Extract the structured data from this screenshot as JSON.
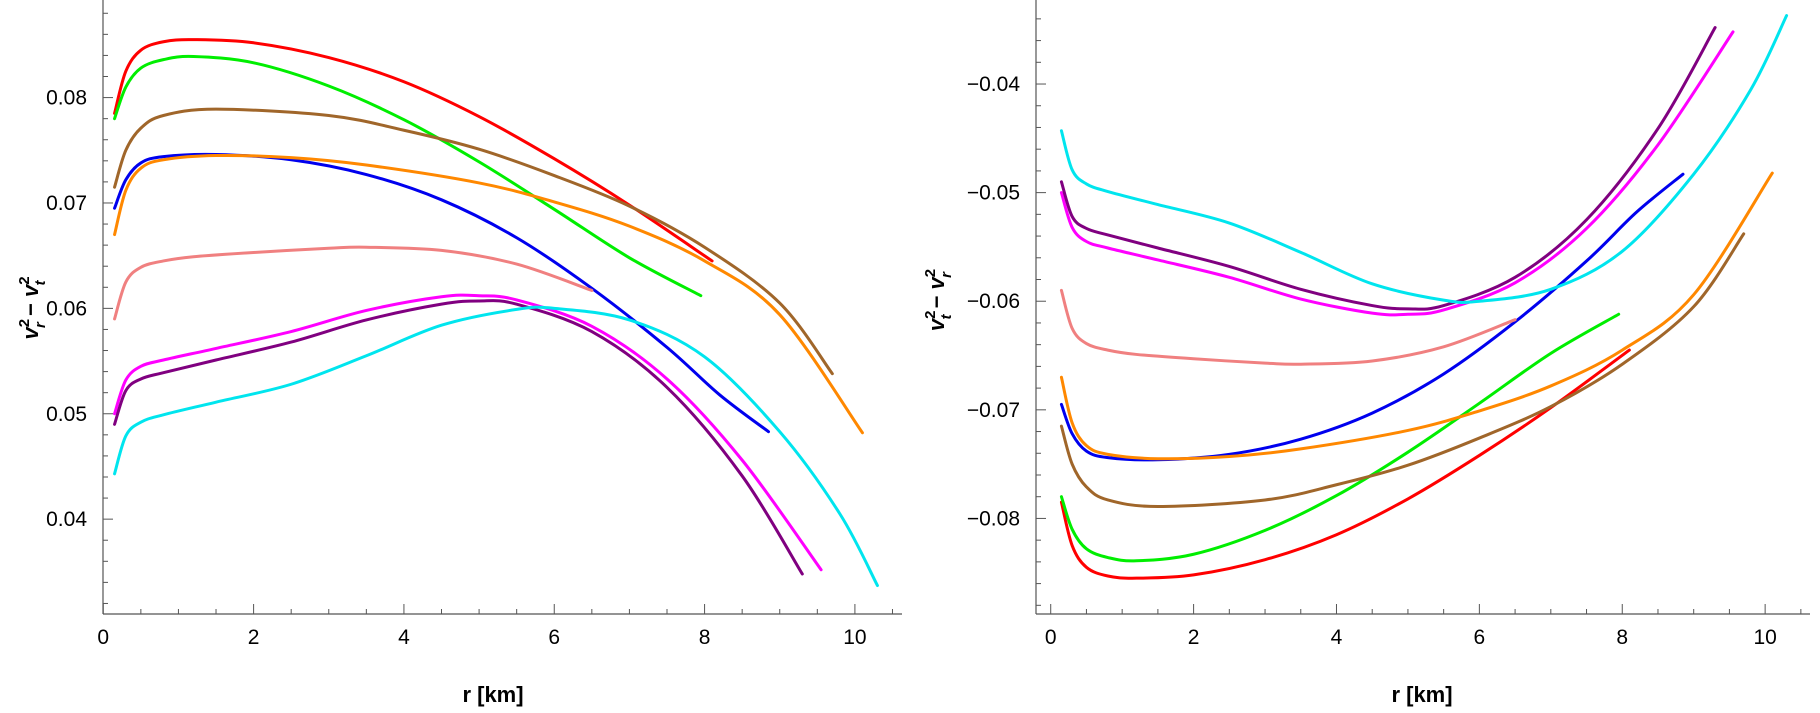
{
  "chart_data": [
    {
      "type": "line",
      "title": "",
      "xlabel": "r [km]",
      "ylabel": "v_r^2 − v_t^2",
      "ylabel_parts": {
        "v1": "v",
        "sup1": "2",
        "sub1": "r",
        "minus": "−",
        "v2": "v",
        "sup2": "2",
        "sub2": "t"
      },
      "xlim": [
        -0.15,
        10.6
      ],
      "ylim": [
        0.031,
        0.0885
      ],
      "xticks": [
        0,
        2,
        4,
        6,
        8,
        10
      ],
      "xtick_labels": [
        "0",
        "2",
        "4",
        "6",
        "8",
        "10"
      ],
      "yticks": [
        0.04,
        0.05,
        0.06,
        0.07,
        0.08
      ],
      "ytick_labels": [
        "0.04",
        "0.05",
        "0.06",
        "0.07",
        "0.08"
      ],
      "grid": false,
      "series": [
        {
          "color": "#ff0000",
          "x": [
            0.15,
            0.3,
            0.5,
            0.8,
            1.2,
            2,
            3,
            4,
            5,
            6,
            7,
            8.1
          ],
          "y": [
            0.0785,
            0.0825,
            0.0845,
            0.0853,
            0.0855,
            0.0852,
            0.0838,
            0.0815,
            0.0782,
            0.0742,
            0.0698,
            0.0645
          ]
        },
        {
          "color": "#00ee00",
          "x": [
            0.15,
            0.3,
            0.5,
            0.8,
            1.2,
            2,
            3,
            4,
            5,
            6,
            7,
            7.95
          ],
          "y": [
            0.078,
            0.081,
            0.0828,
            0.0836,
            0.0839,
            0.0833,
            0.0811,
            0.0779,
            0.0739,
            0.0694,
            0.0648,
            0.0612
          ]
        },
        {
          "color": "#a0662a",
          "x": [
            0.15,
            0.3,
            0.5,
            0.8,
            1.5,
            3,
            4,
            5,
            6,
            7,
            8,
            9,
            9.7
          ],
          "y": [
            0.0715,
            0.075,
            0.0771,
            0.0783,
            0.0789,
            0.0783,
            0.0769,
            0.0751,
            0.0726,
            0.0697,
            0.0658,
            0.0605,
            0.0538
          ]
        },
        {
          "color": "#0000ee",
          "x": [
            0.15,
            0.3,
            0.5,
            0.8,
            1.5,
            2.5,
            3.5,
            4.5,
            5.5,
            6.5,
            7.5,
            8.2,
            8.85
          ],
          "y": [
            0.0695,
            0.0722,
            0.0738,
            0.0744,
            0.0746,
            0.0741,
            0.0727,
            0.0703,
            0.0667,
            0.0619,
            0.0563,
            0.0518,
            0.0483
          ]
        },
        {
          "color": "#ff8800",
          "x": [
            0.15,
            0.3,
            0.5,
            0.8,
            1.5,
            2.5,
            3.5,
            5,
            6,
            7,
            8,
            9,
            10.1
          ],
          "y": [
            0.067,
            0.0712,
            0.0733,
            0.0741,
            0.0745,
            0.0743,
            0.0736,
            0.0719,
            0.0701,
            0.0678,
            0.0645,
            0.0594,
            0.0482
          ]
        },
        {
          "color": "#f08080",
          "x": [
            0.15,
            0.3,
            0.5,
            0.8,
            1.2,
            2,
            3,
            3.5,
            4.5,
            5.5,
            6.5
          ],
          "y": [
            0.059,
            0.0625,
            0.0639,
            0.0645,
            0.0649,
            0.0653,
            0.0657,
            0.0658,
            0.0655,
            0.0642,
            0.0617
          ]
        },
        {
          "color": "#ff00ff",
          "x": [
            0.15,
            0.3,
            0.5,
            0.8,
            1.5,
            2.5,
            3.5,
            4.5,
            5,
            5.5,
            6.5,
            7.5,
            8.5,
            9.55
          ],
          "y": [
            0.05,
            0.0532,
            0.0545,
            0.0551,
            0.0562,
            0.0578,
            0.0598,
            0.0611,
            0.0612,
            0.0608,
            0.0583,
            0.0533,
            0.0456,
            0.0352
          ]
        },
        {
          "color": "#800080",
          "x": [
            0.15,
            0.3,
            0.5,
            0.8,
            1.5,
            2.5,
            3.5,
            4.5,
            5,
            5.5,
            6.5,
            7.5,
            8.5,
            9.3
          ],
          "y": [
            0.049,
            0.0522,
            0.0533,
            0.0539,
            0.0551,
            0.0568,
            0.0589,
            0.0604,
            0.0607,
            0.0604,
            0.0578,
            0.0525,
            0.0441,
            0.0348
          ]
        },
        {
          "color": "#00e5ee",
          "x": [
            0.15,
            0.3,
            0.5,
            0.8,
            1.5,
            2.5,
            3.5,
            4.5,
            5.5,
            6,
            7,
            8,
            9,
            9.8,
            10.3
          ],
          "y": [
            0.0443,
            0.0479,
            0.0492,
            0.0499,
            0.0511,
            0.0528,
            0.0555,
            0.0584,
            0.0599,
            0.06,
            0.0589,
            0.0554,
            0.0483,
            0.0405,
            0.0337
          ]
        }
      ]
    },
    {
      "type": "line",
      "title": "",
      "xlabel": "r [km]",
      "ylabel": "v_t^2 − v_r^2",
      "ylabel_parts": {
        "v1": "v",
        "sup1": "2",
        "sub1": "t",
        "minus": "−",
        "v2": "v",
        "sup2": "2",
        "sub2": "r"
      },
      "xlim": [
        -0.15,
        10.6
      ],
      "ylim": [
        -0.0888,
        -0.033
      ],
      "xticks": [
        0,
        2,
        4,
        6,
        8,
        10
      ],
      "xtick_labels": [
        "0",
        "2",
        "4",
        "6",
        "8",
        "10"
      ],
      "yticks": [
        -0.08,
        -0.07,
        -0.06,
        -0.05,
        -0.04
      ],
      "ytick_labels": [
        "−0.08",
        "−0.07",
        "−0.06",
        "−0.05",
        "−0.04"
      ],
      "grid": false,
      "series": [
        {
          "color": "#ff0000",
          "x": [
            0.15,
            0.3,
            0.5,
            0.8,
            1.2,
            2,
            3,
            4,
            5,
            6,
            7,
            8.1
          ],
          "y": [
            -0.0785,
            -0.0825,
            -0.0845,
            -0.0853,
            -0.0855,
            -0.0852,
            -0.0838,
            -0.0815,
            -0.0782,
            -0.0742,
            -0.0698,
            -0.0645
          ]
        },
        {
          "color": "#00ee00",
          "x": [
            0.15,
            0.3,
            0.5,
            0.8,
            1.2,
            2,
            3,
            4,
            5,
            6,
            7,
            7.95
          ],
          "y": [
            -0.078,
            -0.081,
            -0.0828,
            -0.0836,
            -0.0839,
            -0.0833,
            -0.0811,
            -0.0779,
            -0.0739,
            -0.0694,
            -0.0648,
            -0.0612
          ]
        },
        {
          "color": "#a0662a",
          "x": [
            0.15,
            0.3,
            0.5,
            0.8,
            1.5,
            3,
            4,
            5,
            6,
            7,
            8,
            9,
            9.7
          ],
          "y": [
            -0.0715,
            -0.075,
            -0.0771,
            -0.0783,
            -0.0789,
            -0.0783,
            -0.0769,
            -0.0751,
            -0.0726,
            -0.0697,
            -0.0658,
            -0.0605,
            -0.0538
          ]
        },
        {
          "color": "#0000ee",
          "x": [
            0.15,
            0.3,
            0.5,
            0.8,
            1.5,
            2.5,
            3.5,
            4.5,
            5.5,
            6.5,
            7.5,
            8.2,
            8.85
          ],
          "y": [
            -0.0695,
            -0.0722,
            -0.0738,
            -0.0744,
            -0.0746,
            -0.0741,
            -0.0727,
            -0.0703,
            -0.0667,
            -0.0619,
            -0.0563,
            -0.0518,
            -0.0483
          ]
        },
        {
          "color": "#ff8800",
          "x": [
            0.15,
            0.3,
            0.5,
            0.8,
            1.5,
            2.5,
            3.5,
            5,
            6,
            7,
            8,
            9,
            10.1
          ],
          "y": [
            -0.067,
            -0.0712,
            -0.0733,
            -0.0741,
            -0.0745,
            -0.0743,
            -0.0736,
            -0.0719,
            -0.0701,
            -0.0678,
            -0.0645,
            -0.0594,
            -0.0482
          ]
        },
        {
          "color": "#f08080",
          "x": [
            0.15,
            0.3,
            0.5,
            0.8,
            1.2,
            2,
            3,
            3.5,
            4.5,
            5.5,
            6.5
          ],
          "y": [
            -0.059,
            -0.0625,
            -0.0639,
            -0.0645,
            -0.0649,
            -0.0653,
            -0.0657,
            -0.0658,
            -0.0655,
            -0.0642,
            -0.0617
          ]
        },
        {
          "color": "#ff00ff",
          "x": [
            0.15,
            0.3,
            0.5,
            0.8,
            1.5,
            2.5,
            3.5,
            4.5,
            5,
            5.5,
            6.5,
            7.5,
            8.5,
            9.55
          ],
          "y": [
            -0.05,
            -0.0532,
            -0.0545,
            -0.0551,
            -0.0562,
            -0.0578,
            -0.0598,
            -0.0611,
            -0.0612,
            -0.0608,
            -0.0583,
            -0.0533,
            -0.0456,
            -0.0352
          ]
        },
        {
          "color": "#800080",
          "x": [
            0.15,
            0.3,
            0.5,
            0.8,
            1.5,
            2.5,
            3.5,
            4.5,
            5,
            5.5,
            6.5,
            7.5,
            8.5,
            9.3
          ],
          "y": [
            -0.049,
            -0.0522,
            -0.0533,
            -0.0539,
            -0.0551,
            -0.0568,
            -0.0589,
            -0.0604,
            -0.0607,
            -0.0604,
            -0.0578,
            -0.0525,
            -0.0441,
            -0.0348
          ]
        },
        {
          "color": "#00e5ee",
          "x": [
            0.15,
            0.3,
            0.5,
            0.8,
            1.5,
            2.5,
            3.5,
            4.5,
            5.5,
            6,
            7,
            8,
            9,
            9.8,
            10.3
          ],
          "y": [
            -0.0443,
            -0.0479,
            -0.0492,
            -0.0499,
            -0.0511,
            -0.0528,
            -0.0555,
            -0.0584,
            -0.0599,
            -0.06,
            -0.0589,
            -0.0554,
            -0.0483,
            -0.0405,
            -0.0337
          ]
        }
      ]
    }
  ]
}
